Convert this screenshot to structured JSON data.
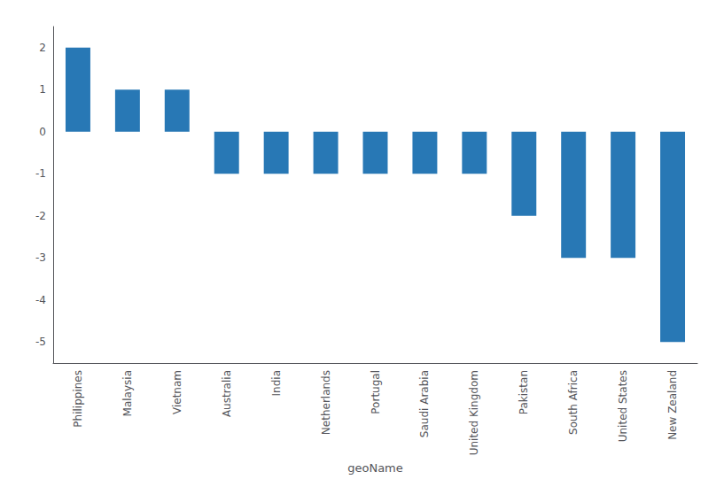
{
  "chart_data": {
    "type": "bar",
    "xlabel": "geoName",
    "categories": [
      "Philippines",
      "Malaysia",
      "Vietnam",
      "Australia",
      "India",
      "Netherlands",
      "Portugal",
      "Saudi Arabia",
      "United Kingdom",
      "Pakistan",
      "South Africa",
      "United States",
      "New Zealand"
    ],
    "values": [
      2,
      1,
      1,
      -1,
      -1,
      -1,
      -1,
      -1,
      -1,
      -2,
      -3,
      -3,
      -5
    ],
    "color": "#2878b5",
    "ylim": [
      -5.5,
      2.5
    ],
    "yticks": [
      -5,
      -4,
      -3,
      -2,
      -1,
      0,
      1,
      2
    ],
    "grid": false
  }
}
